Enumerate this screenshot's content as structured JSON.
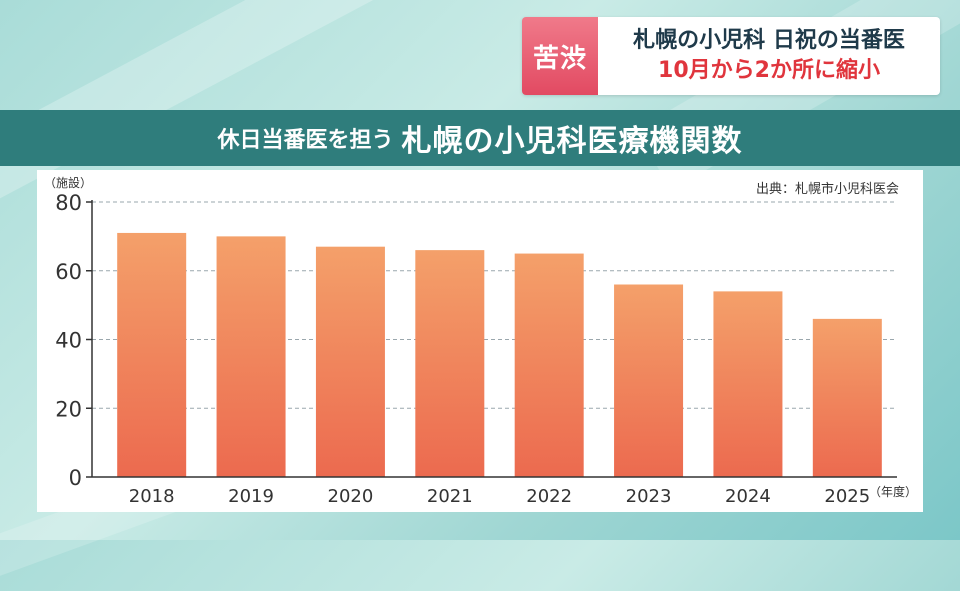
{
  "headline": {
    "tag": "苦渋",
    "line1": "札幌の小児科 日祝の当番医",
    "line2": "10月から2か所に縮小"
  },
  "title": {
    "prefix": "休日当番医を担う",
    "main": "札幌の小児科医療機関数"
  },
  "chart_data": {
    "type": "bar",
    "categories": [
      "2018",
      "2019",
      "2020",
      "2021",
      "2022",
      "2023",
      "2024",
      "2025"
    ],
    "values": [
      71,
      70,
      67,
      66,
      65,
      56,
      54,
      46
    ],
    "yticks": [
      0,
      20,
      40,
      60,
      80
    ],
    "ylim": [
      0,
      80
    ],
    "ylabel": "（施設）",
    "xlabel": "（年度）",
    "source": "出典：札幌市小児科医会",
    "grid": true,
    "bar_color_top": "#f4a06a",
    "bar_color_bottom": "#ec6a4f"
  }
}
